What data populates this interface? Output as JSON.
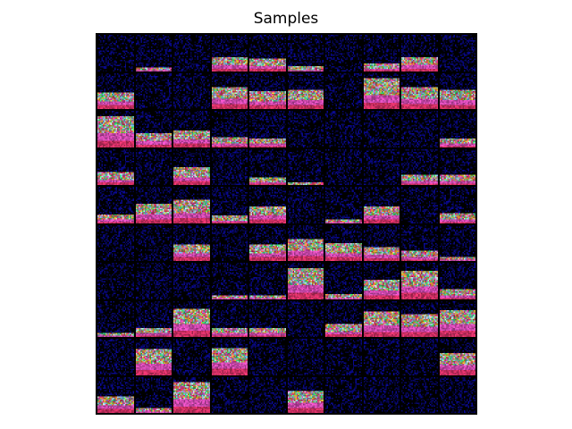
{
  "figure": {
    "title": "Samples",
    "background": "#ffffff"
  },
  "grid": {
    "rows": 10,
    "cols": 10,
    "tile_pixels": 28,
    "frame_color": "#000000",
    "fills": [
      [
        0.0,
        0.12,
        0.0,
        0.4,
        0.35,
        0.15,
        0.0,
        0.2,
        0.38,
        0.0
      ],
      [
        0.45,
        0.0,
        0.0,
        0.6,
        0.5,
        0.55,
        0.0,
        0.85,
        0.62,
        0.55
      ],
      [
        0.85,
        0.4,
        0.45,
        0.28,
        0.25,
        0.0,
        0.0,
        0.0,
        0.0,
        0.25
      ],
      [
        0.35,
        0.0,
        0.5,
        0.0,
        0.2,
        0.08,
        0.0,
        0.0,
        0.28,
        0.28
      ],
      [
        0.25,
        0.55,
        0.65,
        0.2,
        0.48,
        0.0,
        0.1,
        0.45,
        0.0,
        0.28
      ],
      [
        0.0,
        0.0,
        0.45,
        0.0,
        0.45,
        0.6,
        0.5,
        0.4,
        0.3,
        0.1
      ],
      [
        0.0,
        0.0,
        0.0,
        0.1,
        0.12,
        0.85,
        0.15,
        0.55,
        0.8,
        0.3
      ],
      [
        0.1,
        0.25,
        0.8,
        0.25,
        0.25,
        0.0,
        0.35,
        0.7,
        0.65,
        0.75
      ],
      [
        0.0,
        0.7,
        0.0,
        0.75,
        0.0,
        0.0,
        0.0,
        0.0,
        0.0,
        0.6
      ],
      [
        0.45,
        0.15,
        0.85,
        0.0,
        0.0,
        0.6,
        0.0,
        0.0,
        0.0,
        0.0
      ]
    ],
    "palette": [
      "#ff3a7a",
      "#ffd23a",
      "#b8ffe0",
      "#ff5ad8",
      "#3aff7a",
      "#7ad0ff",
      "#ff9c3a",
      "#e0e0ff"
    ],
    "noise_color": "#1a1aa0"
  }
}
